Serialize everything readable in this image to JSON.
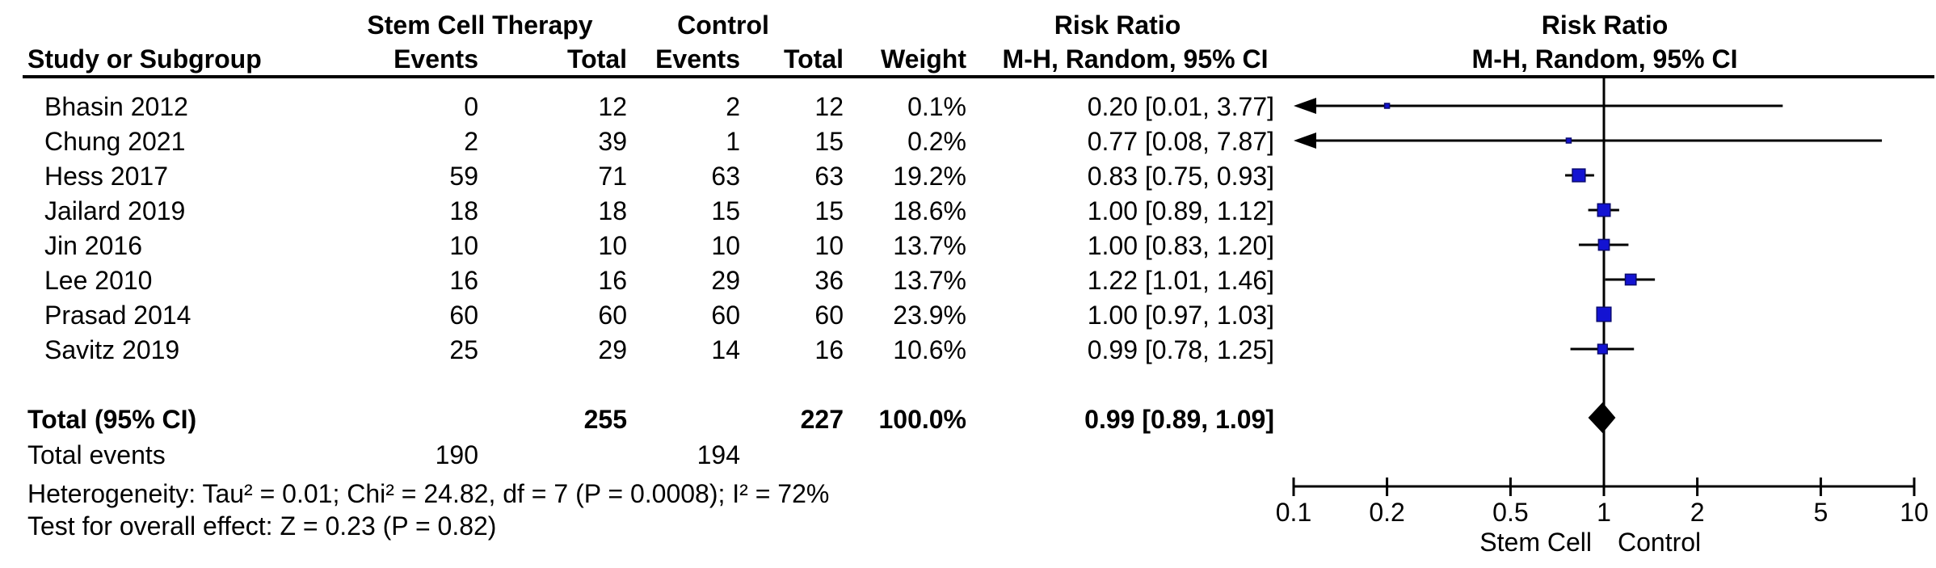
{
  "table": {
    "group_experimental": "Stem Cell Therapy",
    "group_control": "Control",
    "group_risk_ratio": "Risk Ratio",
    "col_study": "Study or Subgroup",
    "col_events": "Events",
    "col_total": "Total",
    "col_weight": "Weight",
    "col_mh_ci": "M-H, Random, 95% CI"
  },
  "plot": {
    "header_title": "Risk Ratio",
    "header_subtitle": "M-H, Random, 95% CI"
  },
  "colors": {
    "marker_fill": "#1313d2",
    "marker_stroke": "#0a0a70",
    "line": "#000000",
    "diamond": "#000000",
    "text": "#000000",
    "background": "#ffffff"
  },
  "chart_data": {
    "type": "scatter",
    "subtype": "forest-plot",
    "title": "Risk Ratio",
    "effect_measure": "M-H, Random, 95% CI",
    "x_scale": "log10",
    "x_range": [
      0.1,
      10
    ],
    "x_ticks": [
      0.1,
      0.2,
      0.5,
      1,
      2,
      5,
      10
    ],
    "x_axis_left_label": "Stem Cell",
    "x_axis_right_label": "Control",
    "studies": [
      {
        "study": "Bhasin 2012",
        "exp_events": 0,
        "exp_total": 12,
        "ctrl_events": 2,
        "ctrl_total": 12,
        "weight_pct": 0.1,
        "weight_label": "0.1%",
        "rr": 0.2,
        "ci_low": 0.01,
        "ci_high": 3.77,
        "ci_label": "0.20 [0.01, 3.77]"
      },
      {
        "study": "Chung 2021",
        "exp_events": 2,
        "exp_total": 39,
        "ctrl_events": 1,
        "ctrl_total": 15,
        "weight_pct": 0.2,
        "weight_label": "0.2%",
        "rr": 0.77,
        "ci_low": 0.08,
        "ci_high": 7.87,
        "ci_label": "0.77 [0.08, 7.87]"
      },
      {
        "study": "Hess 2017",
        "exp_events": 59,
        "exp_total": 71,
        "ctrl_events": 63,
        "ctrl_total": 63,
        "weight_pct": 19.2,
        "weight_label": "19.2%",
        "rr": 0.83,
        "ci_low": 0.75,
        "ci_high": 0.93,
        "ci_label": "0.83 [0.75, 0.93]"
      },
      {
        "study": "Jailard 2019",
        "exp_events": 18,
        "exp_total": 18,
        "ctrl_events": 15,
        "ctrl_total": 15,
        "weight_pct": 18.6,
        "weight_label": "18.6%",
        "rr": 1.0,
        "ci_low": 0.89,
        "ci_high": 1.12,
        "ci_label": "1.00 [0.89, 1.12]"
      },
      {
        "study": "Jin 2016",
        "exp_events": 10,
        "exp_total": 10,
        "ctrl_events": 10,
        "ctrl_total": 10,
        "weight_pct": 13.7,
        "weight_label": "13.7%",
        "rr": 1.0,
        "ci_low": 0.83,
        "ci_high": 1.2,
        "ci_label": "1.00 [0.83, 1.20]"
      },
      {
        "study": "Lee 2010",
        "exp_events": 16,
        "exp_total": 16,
        "ctrl_events": 29,
        "ctrl_total": 36,
        "weight_pct": 13.7,
        "weight_label": "13.7%",
        "rr": 1.22,
        "ci_low": 1.01,
        "ci_high": 1.46,
        "ci_label": "1.22 [1.01, 1.46]"
      },
      {
        "study": "Prasad 2014",
        "exp_events": 60,
        "exp_total": 60,
        "ctrl_events": 60,
        "ctrl_total": 60,
        "weight_pct": 23.9,
        "weight_label": "23.9%",
        "rr": 1.0,
        "ci_low": 0.97,
        "ci_high": 1.03,
        "ci_label": "1.00 [0.97, 1.03]"
      },
      {
        "study": "Savitz 2019",
        "exp_events": 25,
        "exp_total": 29,
        "ctrl_events": 14,
        "ctrl_total": 16,
        "weight_pct": 10.6,
        "weight_label": "10.6%",
        "rr": 0.99,
        "ci_low": 0.78,
        "ci_high": 1.25,
        "ci_label": "0.99 [0.78, 1.25]"
      }
    ],
    "total": {
      "label": "Total (95% CI)",
      "exp_total": "255",
      "ctrl_total": "227",
      "weight_label": "100.0%",
      "rr": 0.99,
      "ci_low": 0.89,
      "ci_high": 1.09,
      "ci_label": "0.99 [0.89, 1.09]"
    },
    "total_events": {
      "label": "Total events",
      "exp_events": "190",
      "ctrl_events": "194"
    },
    "heterogeneity": "Heterogeneity: Tau² = 0.01; Chi² = 24.82, df = 7 (P = 0.0008); I² = 72%",
    "overall_effect": "Test for overall effect: Z = 0.23 (P = 0.82)"
  }
}
